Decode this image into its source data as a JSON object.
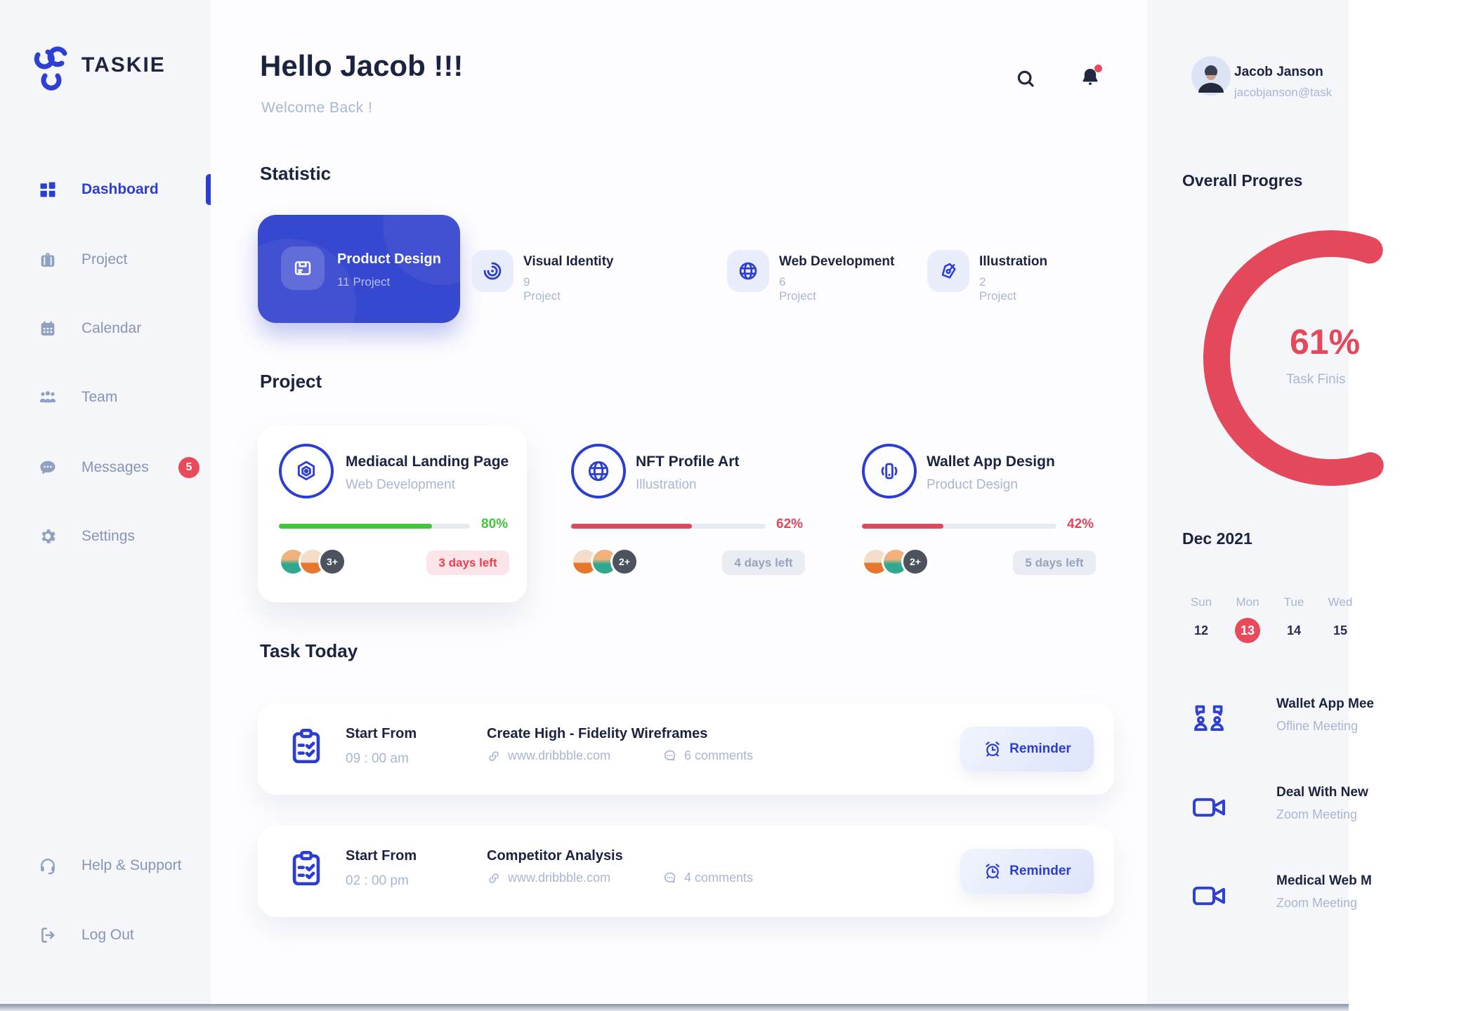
{
  "brand": {
    "name": "TASKIE"
  },
  "sidebar": {
    "items": [
      {
        "label": "Dashboard",
        "icon": "dashboard-icon",
        "active": true
      },
      {
        "label": "Project",
        "icon": "briefcase-icon"
      },
      {
        "label": "Calendar",
        "icon": "calendar-icon"
      },
      {
        "label": "Team",
        "icon": "team-icon"
      },
      {
        "label": "Messages",
        "icon": "messages-icon",
        "badge": "5"
      },
      {
        "label": "Settings",
        "icon": "gear-icon"
      }
    ],
    "footer_items": [
      {
        "label": "Help & Support",
        "icon": "headset-icon"
      },
      {
        "label": "Log Out",
        "icon": "logout-icon"
      }
    ]
  },
  "header": {
    "greeting": "Hello Jacob !!!",
    "welcome": "Welcome Back !"
  },
  "statistic": {
    "title": "Statistic",
    "cards": [
      {
        "title": "Product Design",
        "count": "11 Project",
        "icon": "package-icon",
        "active": true
      },
      {
        "title": "Visual Identity",
        "count": "9 Project",
        "icon": "swirl-icon"
      },
      {
        "title": "Web Development",
        "count": "6 Project",
        "icon": "globe-icon"
      },
      {
        "title": "Illustration",
        "count": "2 Project",
        "icon": "pen-nib-icon"
      }
    ]
  },
  "projects": {
    "title": "Project",
    "cards": [
      {
        "title": "Mediacal Landing Page",
        "category": "Web Development",
        "icon": "webhook-icon",
        "percent": 80,
        "percent_label": "80%",
        "days_left": "3 days left",
        "more": "3+",
        "status": "green"
      },
      {
        "title": "NFT Profile Art",
        "category": "Illustration",
        "icon": "globe-icon",
        "percent": 62,
        "percent_label": "62%",
        "days_left": "4 days left",
        "more": "2+",
        "status": "red"
      },
      {
        "title": "Wallet App Design",
        "category": "Product Design",
        "icon": "wallet-icon",
        "percent": 42,
        "percent_label": "42%",
        "days_left": "5 days left",
        "more": "2+",
        "status": "red"
      }
    ]
  },
  "tasks": {
    "title": "Task Today",
    "items": [
      {
        "start_label": "Start From",
        "time": "09 : 00 am",
        "title": "Create High - Fidelity Wireframes",
        "link": "www.dribbble.com",
        "comments": "6 comments",
        "reminder": "Reminder"
      },
      {
        "start_label": "Start From",
        "time": "02 : 00 pm",
        "title": "Competitor Analysis",
        "link": "www.dribbble.com",
        "comments": "4 comments",
        "reminder": "Reminder"
      }
    ]
  },
  "profile": {
    "name": "Jacob Janson",
    "email": "jacobjanson@task"
  },
  "overall": {
    "title": "Overall Progres",
    "value": 61,
    "percent_label": "61%",
    "caption": "Task Finis"
  },
  "calendar": {
    "month": "Dec 2021",
    "day_headers": [
      "Sun",
      "Mon",
      "Tue",
      "Wed"
    ],
    "dates": [
      {
        "label": "12"
      },
      {
        "label": "13",
        "active": true
      },
      {
        "label": "14"
      },
      {
        "label": "15"
      }
    ]
  },
  "meetings": [
    {
      "title": "Wallet App Mee",
      "type": "Ofline Meeting",
      "icon": "discussion-icon"
    },
    {
      "title": "Deal With New",
      "type": "Zoom Meeting",
      "icon": "video-icon"
    },
    {
      "title": "Medical Web M",
      "type": "Zoom Meeting",
      "icon": "video-icon"
    }
  ],
  "colors": {
    "primary": "#2e3fd4",
    "accent_red": "#e4495b",
    "success_green": "#3fc63c",
    "navy": "#1e2442"
  }
}
